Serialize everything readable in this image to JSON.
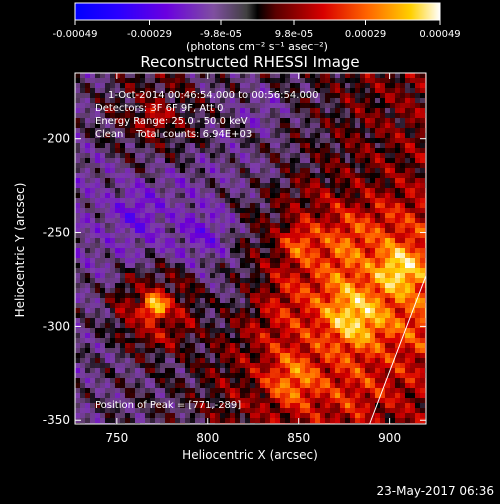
{
  "colorbar": {
    "ticks": [
      "-0.00049",
      "-0.00029",
      "-9.8e-05",
      "9.8e-05",
      "0.00029",
      "0.00049"
    ],
    "unit_label": "(photons cm⁻² s⁻¹ asec⁻²)",
    "range": [
      -0.00049,
      0.00049
    ]
  },
  "chart_data": {
    "type": "heatmap",
    "title": "Reconstructed RHESSI Image",
    "xlabel": "Heliocentric X (arcsec)",
    "ylabel": "Heliocentric Y (arcsec)",
    "xlim": [
      727,
      920
    ],
    "ylim": [
      -352,
      -165
    ],
    "xticks": [
      750,
      800,
      850,
      900
    ],
    "yticks": [
      -200,
      -250,
      -300,
      -350
    ],
    "annotations": [
      "1-Oct-2014 00:46:54.000 to 00:56:54.000",
      "Detectors: 3F 6F 9F, Att 0",
      "Energy Range: 25.0 - 50.0 keV",
      "Clean    Total counts: 6.94E+03"
    ],
    "peak_label": "Position of Peak = [771,-289]",
    "peak": [
      771,
      -289
    ],
    "limb_line": [
      [
        889,
        -352
      ],
      [
        920,
        -273
      ]
    ]
  },
  "footer": {
    "date": "23-May-2017 06:36"
  }
}
